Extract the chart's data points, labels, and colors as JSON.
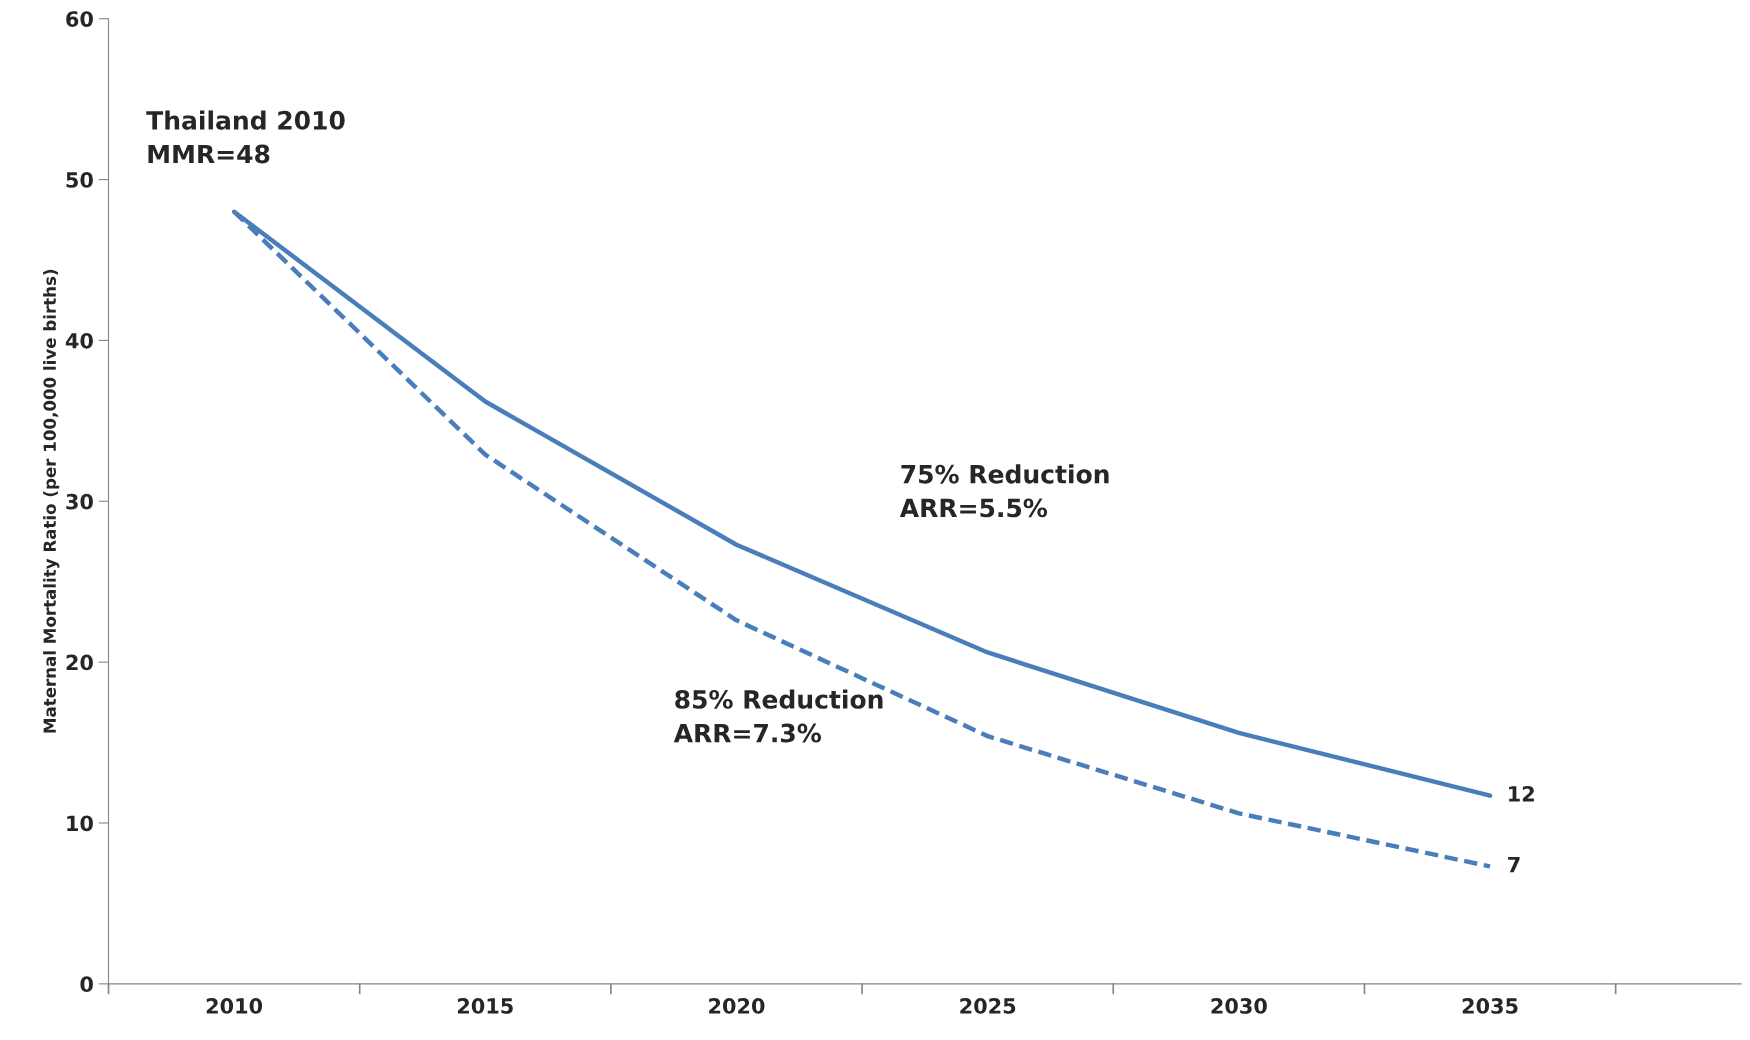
{
  "chart_data": {
    "type": "line",
    "ylabel": "Maternal Mortality Ratio (per 100,000 live births)",
    "categories": [
      "2010",
      "2015",
      "2020",
      "2025",
      "2030",
      "2035"
    ],
    "series": [
      {
        "color": "#4a7ebb",
        "line_style": "solid",
        "values": [
          48,
          36.2,
          27.3,
          20.6,
          15.6,
          11.7
        ]
      },
      {
        "color": "#4a7ebb",
        "line_style": "dashed",
        "values": [
          48,
          32.9,
          22.6,
          15.4,
          10.6,
          7.3
        ]
      }
    ],
    "ylim": [
      0,
      60
    ],
    "yticks": [
      0,
      10,
      20,
      30,
      40,
      50,
      60
    ],
    "grid": false,
    "legend": false,
    "marker": "none",
    "annotations": [
      "Thailand 2010\nMMR=48",
      "75% Reduction\nARR=5.5%",
      "85% Reduction\nARR=7.3%",
      {
        "text": "12",
        "x": "2035",
        "y": 11.7
      },
      {
        "text": "7",
        "x": "2035",
        "y": 7.3
      }
    ]
  }
}
